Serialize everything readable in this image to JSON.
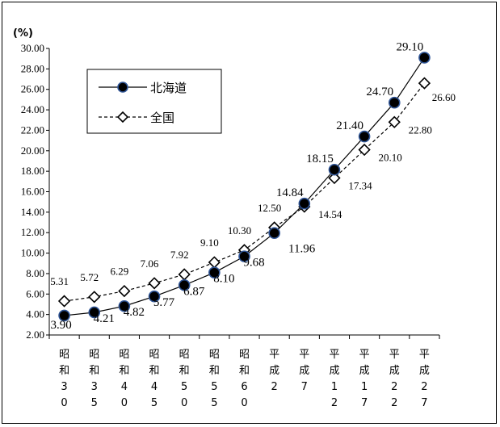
{
  "chart_data": {
    "type": "line",
    "y_unit": "(%)",
    "ylim": [
      2,
      30
    ],
    "y_ticks": [
      "2.00",
      "4.00",
      "6.00",
      "8.00",
      "10.00",
      "12.00",
      "14.00",
      "16.00",
      "18.00",
      "20.00",
      "22.00",
      "24.00",
      "26.00",
      "28.00",
      "30.00"
    ],
    "y_tick_values": [
      2,
      4,
      6,
      8,
      10,
      12,
      14,
      16,
      18,
      20,
      22,
      24,
      26,
      28,
      30
    ],
    "grid": false,
    "legend_position": "top-left",
    "categories": [
      "昭和30",
      "昭和35",
      "昭和40",
      "昭和45",
      "昭和50",
      "昭和55",
      "昭和60",
      "平成2",
      "平成7",
      "平成12",
      "平成17",
      "平成22",
      "平成27"
    ],
    "series": [
      {
        "name": "北海道",
        "style": "solid",
        "marker": "circle",
        "color": "#000000",
        "marker_fill": "#000000",
        "marker_stroke": "#2f5597",
        "values": [
          3.9,
          4.21,
          4.82,
          5.77,
          6.87,
          8.1,
          9.68,
          11.96,
          14.84,
          18.15,
          21.4,
          24.7,
          29.1
        ],
        "labels": [
          "3.90",
          "4.21",
          "4.82",
          "5.77",
          "6.87",
          "8.10",
          "9.68",
          "11.96",
          "14.84",
          "18.15",
          "21.40",
          "24.70",
          "29.10"
        ]
      },
      {
        "name": "全国",
        "style": "dashed",
        "marker": "diamond",
        "color": "#000000",
        "marker_fill": "#ffffff",
        "values": [
          5.31,
          5.72,
          6.29,
          7.06,
          7.92,
          9.1,
          10.3,
          12.5,
          14.54,
          17.34,
          20.1,
          22.8,
          26.6
        ],
        "labels": [
          "5.31",
          "5.72",
          "6.29",
          "7.06",
          "7.92",
          "9.10",
          "10.30",
          "12.50",
          "14.54",
          "17.34",
          "20.10",
          "22.80",
          "26.60"
        ]
      }
    ]
  }
}
